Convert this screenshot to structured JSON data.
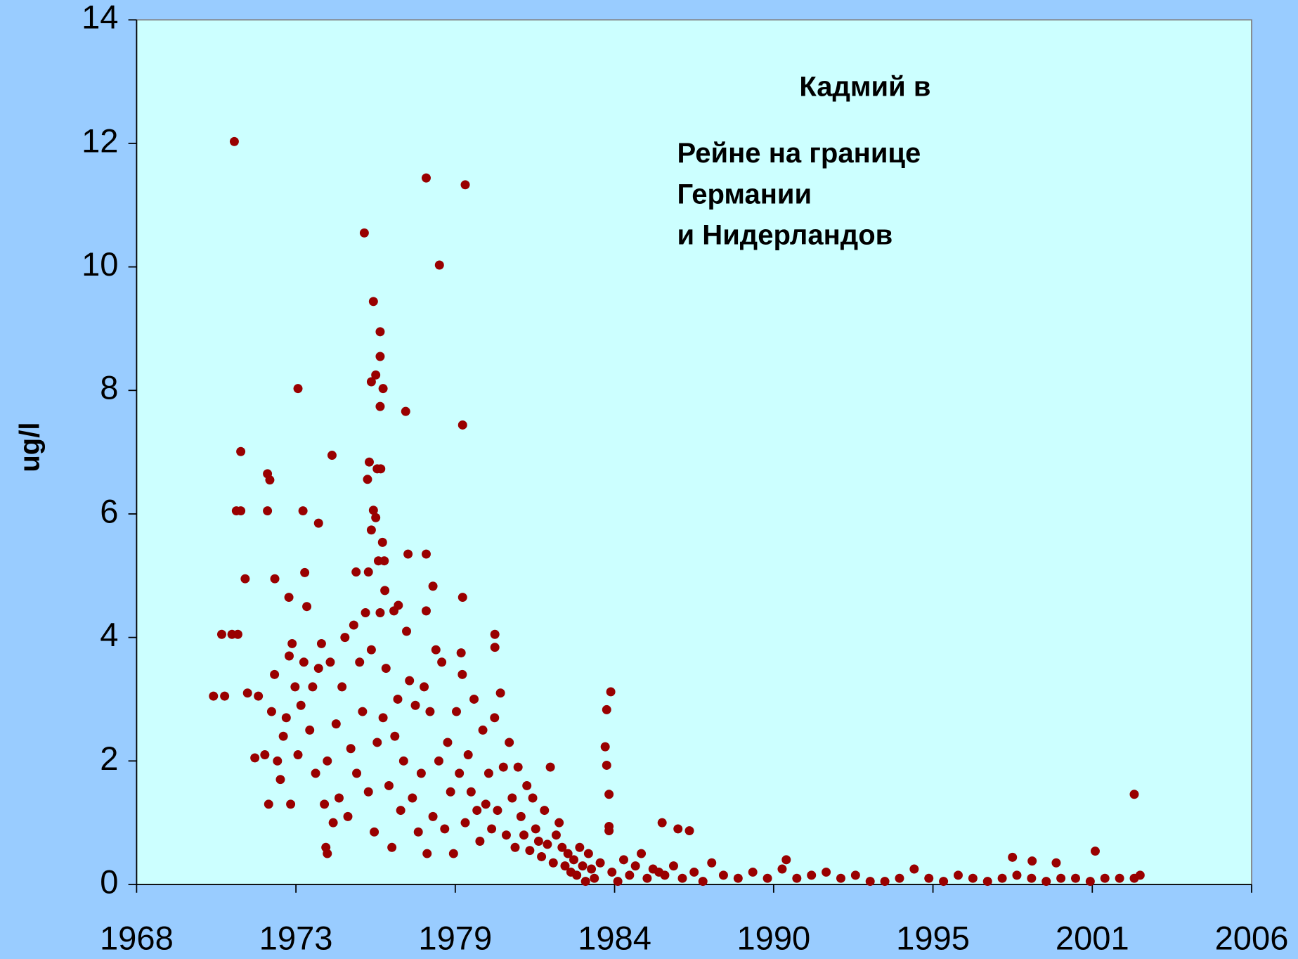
{
  "chart_data": {
    "type": "scatter",
    "title": "Кадмий в",
    "subtitle_lines": [
      "Рейне на границе",
      "Германии",
      "и Нидерландов"
    ],
    "y_label": "ug/l",
    "color": "#990000",
    "xlim": [
      1968,
      2006
    ],
    "xticks": [
      {
        "value": 1968,
        "label": "1968"
      },
      {
        "value": 1973.43,
        "label": "1973"
      },
      {
        "value": 1978.86,
        "label": "1979"
      },
      {
        "value": 1984.29,
        "label": "1984"
      },
      {
        "value": 1989.71,
        "label": "1990"
      },
      {
        "value": 1995.14,
        "label": "1995"
      },
      {
        "value": 2000.57,
        "label": "2001"
      },
      {
        "value": 2006,
        "label": "2006"
      }
    ],
    "ylim": [
      0,
      14
    ],
    "yticks": [
      0,
      2,
      4,
      6,
      8,
      10,
      12,
      14
    ],
    "grid": false,
    "x": [
      1971.33,
      1971.55,
      1971.4,
      1971.55,
      1971.7,
      1970.9,
      1971.25,
      1971.45,
      1970.62,
      1971.0,
      1971.78,
      1972.15,
      1972.03,
      1972.37,
      1972.46,
      1972.54,
      1972.46,
      1972.71,
      1973.5,
      1973.67,
      1973.73,
      1973.19,
      1974.2,
      1974.66,
      1975.76,
      1976.07,
      1976.3,
      1976.3,
      1976.0,
      1976.15,
      1976.4,
      1976.3,
      1975.93,
      1975.87,
      1976.2,
      1976.32,
      1976.07,
      1976.15,
      1976.0,
      1976.38,
      1976.24,
      1976.44,
      1975.48,
      1975.9,
      1976.46,
      1977.87,
      1979.2,
      1978.32,
      1977.17,
      1979.11,
      1977.25,
      1977.87,
      1978.1,
      1979.11,
      1976.92,
      1976.77,
      1977.87,
      1980.21,
      1980.21,
      1979.06,
      1984.16,
      1984.02,
      1983.97,
      1984.02,
      1984.1,
      1984.1,
      1984.1,
      1985.91,
      1986.45,
      1986.84,
      2002.0,
      2000.67,
      1997.85,
      1990.14,
      1998.52,
      1999.34,
      1972.6,
      1972.7,
      1972.8,
      1972.9,
      1972.5,
      1973.0,
      1973.1,
      1973.2,
      1973.3,
      1973.25,
      1973.4,
      1973.5,
      1973.6,
      1973.7,
      1973.8,
      1973.9,
      1974.0,
      1974.1,
      1974.2,
      1974.3,
      1974.4,
      1974.5,
      1974.6,
      1974.7,
      1974.8,
      1974.9,
      1974.45,
      1974.5,
      1975.0,
      1975.1,
      1975.2,
      1975.3,
      1975.4,
      1975.5,
      1975.6,
      1975.7,
      1975.8,
      1975.9,
      1976.0,
      1976.1,
      1976.2,
      1976.3,
      1976.4,
      1976.5,
      1976.6,
      1976.7,
      1976.8,
      1976.9,
      1977.0,
      1977.1,
      1977.2,
      1977.3,
      1977.4,
      1977.5,
      1977.6,
      1977.7,
      1977.8,
      1977.9,
      1978.0,
      1978.1,
      1978.2,
      1978.3,
      1978.4,
      1978.5,
      1978.6,
      1978.7,
      1978.8,
      1978.9,
      1979.0,
      1979.1,
      1979.2,
      1979.3,
      1979.4,
      1979.5,
      1979.6,
      1979.7,
      1979.8,
      1979.9,
      1980.0,
      1980.1,
      1980.2,
      1980.3,
      1980.4,
      1980.5,
      1980.6,
      1980.7,
      1980.8,
      1980.9,
      1981.0,
      1981.1,
      1981.2,
      1981.3,
      1981.4,
      1981.5,
      1981.6,
      1981.7,
      1981.8,
      1981.9,
      1982.0,
      1982.1,
      1982.2,
      1982.3,
      1982.4,
      1982.5,
      1982.6,
      1982.7,
      1982.8,
      1982.9,
      1983.0,
      1983.1,
      1983.2,
      1983.3,
      1983.4,
      1983.5,
      1983.6,
      1983.8,
      1984.2,
      1984.4,
      1984.6,
      1984.8,
      1985.0,
      1985.2,
      1985.4,
      1985.6,
      1985.8,
      1986.0,
      1986.3,
      1986.6,
      1987.0,
      1987.3,
      1987.6,
      1988.0,
      1988.5,
      1989.0,
      1989.5,
      1990.0,
      1990.5,
      1991.0,
      1991.5,
      1992.0,
      1992.5,
      1993.0,
      1993.5,
      1994.0,
      1994.5,
      1995.0,
      1995.5,
      1996.0,
      1996.5,
      1997.0,
      1997.5,
      1998.0,
      1998.5,
      1999.0,
      1999.5,
      2000.0,
      2000.5,
      2001.0,
      2001.5,
      2002.0,
      2002.2
    ],
    "values": [
      12.03,
      7.01,
      6.05,
      6.05,
      4.95,
      4.05,
      4.05,
      4.05,
      3.05,
      3.05,
      3.1,
      3.05,
      2.05,
      2.1,
      6.65,
      6.55,
      6.05,
      4.95,
      8.03,
      6.05,
      5.05,
      4.65,
      5.85,
      6.95,
      10.55,
      9.44,
      8.95,
      8.55,
      8.14,
      8.25,
      8.03,
      7.74,
      6.84,
      6.56,
      6.73,
      6.73,
      6.06,
      5.94,
      5.74,
      5.54,
      5.24,
      5.24,
      5.06,
      5.06,
      4.76,
      11.44,
      11.33,
      10.03,
      7.66,
      7.44,
      5.35,
      5.35,
      4.83,
      4.65,
      4.52,
      4.43,
      4.43,
      4.05,
      3.84,
      3.75,
      3.12,
      2.83,
      2.23,
      1.93,
      1.46,
      0.94,
      0.87,
      1.0,
      0.9,
      0.87,
      1.46,
      0.54,
      0.44,
      0.4,
      0.38,
      0.35,
      2.8,
      3.4,
      2.0,
      1.7,
      1.3,
      2.4,
      2.7,
      3.7,
      3.9,
      1.3,
      3.2,
      2.1,
      2.9,
      3.6,
      4.5,
      2.5,
      3.2,
      1.8,
      3.5,
      3.9,
      1.3,
      2.0,
      3.6,
      1.0,
      2.6,
      1.4,
      0.6,
      0.5,
      3.2,
      4.0,
      1.1,
      2.2,
      4.2,
      1.8,
      3.6,
      2.8,
      4.4,
      1.5,
      3.8,
      0.85,
      2.3,
      4.4,
      2.7,
      3.5,
      1.6,
      0.6,
      2.4,
      3.0,
      1.2,
      2.0,
      4.1,
      3.3,
      1.4,
      2.9,
      0.85,
      1.8,
      3.2,
      0.5,
      2.8,
      1.1,
      3.8,
      2.0,
      3.6,
      0.9,
      2.3,
      1.5,
      0.5,
      2.8,
      1.8,
      3.4,
      1.0,
      2.1,
      1.5,
      3.0,
      1.2,
      0.7,
      2.5,
      1.3,
      1.8,
      0.9,
      2.7,
      1.2,
      3.1,
      1.9,
      0.8,
      2.3,
      1.4,
      0.6,
      1.9,
      1.1,
      0.8,
      1.6,
      0.55,
      1.4,
      0.9,
      0.7,
      0.45,
      1.2,
      0.65,
      1.9,
      0.35,
      0.8,
      1.0,
      0.6,
      0.3,
      0.5,
      0.2,
      0.4,
      0.15,
      0.6,
      0.3,
      0.05,
      0.5,
      0.25,
      0.1,
      0.35,
      0.2,
      0.05,
      0.4,
      0.15,
      0.3,
      0.5,
      0.1,
      0.25,
      0.2,
      0.15,
      0.3,
      0.1,
      0.2,
      0.05,
      0.35,
      0.15,
      0.1,
      0.2,
      0.1,
      0.25,
      0.1,
      0.15,
      0.2,
      0.1,
      0.15,
      0.05,
      0.05,
      0.1,
      0.25,
      0.1,
      0.05,
      0.15,
      0.1,
      0.05,
      0.1,
      0.15,
      0.1,
      0.05,
      0.1,
      0.1,
      0.05,
      0.1,
      0.1,
      0.1,
      0.15
    ]
  }
}
